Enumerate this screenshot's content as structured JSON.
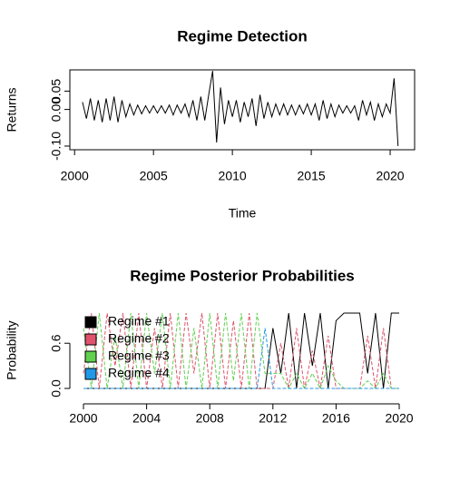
{
  "chart_data": [
    {
      "type": "line",
      "title": "Regime Detection",
      "x_label": "Time",
      "y_label": "Returns",
      "xlim": [
        1999.7,
        2021.55
      ],
      "ylim": [
        -0.11,
        0.108
      ],
      "xticks": [
        2000,
        2005,
        2010,
        2015,
        2020
      ],
      "yticks": [
        {
          "value": -0.1,
          "label": "-0.10"
        },
        {
          "value": 0,
          "label": "0.00"
        },
        0.05
      ],
      "x": [
        2000.5,
        2000.75,
        2001,
        2001.25,
        2001.5,
        2001.75,
        2002,
        2002.25,
        2002.5,
        2002.75,
        2003,
        2003.25,
        2003.5,
        2003.75,
        2004,
        2004.25,
        2004.5,
        2004.75,
        2005,
        2005.25,
        2005.5,
        2005.75,
        2006,
        2006.25,
        2006.5,
        2006.75,
        2007,
        2007.25,
        2007.5,
        2007.75,
        2008,
        2008.25,
        2008.5,
        2008.75,
        2009,
        2009.25,
        2009.5,
        2009.75,
        2010,
        2010.25,
        2010.5,
        2010.75,
        2011,
        2011.25,
        2011.5,
        2011.75,
        2012,
        2012.25,
        2012.5,
        2012.75,
        2013,
        2013.25,
        2013.5,
        2013.75,
        2014,
        2014.25,
        2014.5,
        2014.75,
        2015,
        2015.25,
        2015.5,
        2015.75,
        2016,
        2016.25,
        2016.5,
        2016.75,
        2017,
        2017.25,
        2017.5,
        2017.75,
        2018,
        2018.25,
        2018.5,
        2018.75,
        2019,
        2019.25,
        2019.5,
        2019.75,
        2020,
        2020.25,
        2020.5
      ],
      "series": [
        {
          "color": "#000000",
          "values": [
            0.02,
            -0.025,
            0.03,
            -0.03,
            0.025,
            -0.035,
            0.03,
            -0.03,
            0.035,
            -0.035,
            0.025,
            -0.02,
            0.015,
            -0.015,
            0.012,
            -0.012,
            0.01,
            -0.01,
            0.01,
            -0.01,
            0.01,
            -0.01,
            0.012,
            -0.015,
            0.012,
            -0.01,
            0.015,
            -0.02,
            0.025,
            -0.03,
            0.035,
            -0.03,
            0.04,
            0.105,
            -0.09,
            0.06,
            -0.04,
            0.025,
            -0.02,
            0.025,
            -0.035,
            0.02,
            -0.02,
            0.03,
            -0.045,
            0.04,
            -0.025,
            0.02,
            -0.02,
            0.015,
            -0.015,
            0.015,
            -0.015,
            0.012,
            -0.015,
            0.012,
            -0.012,
            0.015,
            -0.015,
            0.015,
            -0.03,
            0.025,
            -0.025,
            0.015,
            -0.02,
            0.012,
            -0.01,
            0.01,
            -0.01,
            0.01,
            -0.03,
            0.025,
            -0.015,
            0.02,
            -0.03,
            0.015,
            -0.02,
            0.015,
            -0.01,
            0.085,
            -0.1
          ]
        }
      ]
    },
    {
      "type": "line",
      "title": "Regime Posterior Probabilities",
      "y_label": "Probability",
      "xlim": [
        2000,
        2020.2
      ],
      "ylim": [
        0,
        1
      ],
      "xticks": [
        2000,
        2004,
        2008,
        2012,
        2016,
        2020
      ],
      "yticks": [
        {
          "value": 0,
          "label": "0.0"
        },
        0.6
      ],
      "legend": "top-left",
      "x": [
        2000,
        2000.5,
        2001,
        2001.5,
        2002,
        2002.5,
        2003,
        2003.5,
        2004,
        2004.5,
        2005,
        2005.5,
        2006,
        2006.5,
        2007,
        2007.5,
        2008,
        2008.5,
        2009,
        2009.5,
        2010,
        2010.5,
        2011,
        2011.5,
        2012,
        2012.5,
        2013,
        2013.5,
        2014,
        2014.5,
        2015,
        2015.5,
        2016,
        2016.5,
        2017,
        2017.5,
        2018,
        2018.5,
        2019,
        2019.5,
        2020
      ],
      "series": [
        {
          "name": "Regime #1",
          "color": "#000000",
          "values": [
            0,
            0,
            0,
            0,
            0,
            0,
            0,
            0,
            0,
            0,
            0,
            0,
            0,
            0,
            0,
            0,
            0,
            0,
            0,
            0,
            0,
            0,
            0,
            0,
            0.8,
            0.2,
            1,
            0,
            1,
            0.3,
            1,
            0,
            0.9,
            1,
            1,
            1,
            0.2,
            1,
            0,
            1,
            1
          ]
        },
        {
          "name": "Regime #2",
          "color": "#DF536B",
          "values": [
            0.2,
            1,
            0,
            1,
            0.3,
            1,
            0,
            1,
            0,
            0.8,
            0,
            1,
            0,
            1,
            0.2,
            1,
            0,
            1,
            0,
            0.9,
            0,
            1,
            0,
            0,
            0,
            0.6,
            0,
            0.8,
            0,
            0.5,
            0,
            0.7,
            0,
            0,
            0,
            0,
            0.7,
            0,
            0.8,
            0,
            0
          ]
        },
        {
          "name": "Regime #3",
          "color": "#61D04F",
          "values": [
            0.8,
            0,
            1,
            0,
            0.7,
            0,
            1,
            0,
            1,
            0.2,
            1,
            0,
            1,
            0,
            0.8,
            0,
            1,
            0,
            1,
            0.1,
            1,
            0,
            1,
            0.2,
            0.2,
            0.2,
            0,
            0.2,
            0,
            0.2,
            0,
            0.3,
            0.1,
            0,
            0,
            0,
            0.1,
            0,
            0.2,
            0,
            0
          ]
        },
        {
          "name": "Regime #4",
          "color": "#2297E6",
          "values": [
            0,
            0,
            0,
            0,
            0,
            0,
            0,
            0,
            0,
            0,
            0,
            0,
            0,
            0,
            0,
            0,
            0,
            0,
            0,
            0,
            0,
            0,
            0,
            0.8,
            0,
            0,
            0,
            0,
            0,
            0,
            0,
            0,
            0,
            0,
            0,
            0,
            0,
            0,
            0,
            0,
            0
          ]
        }
      ]
    }
  ]
}
